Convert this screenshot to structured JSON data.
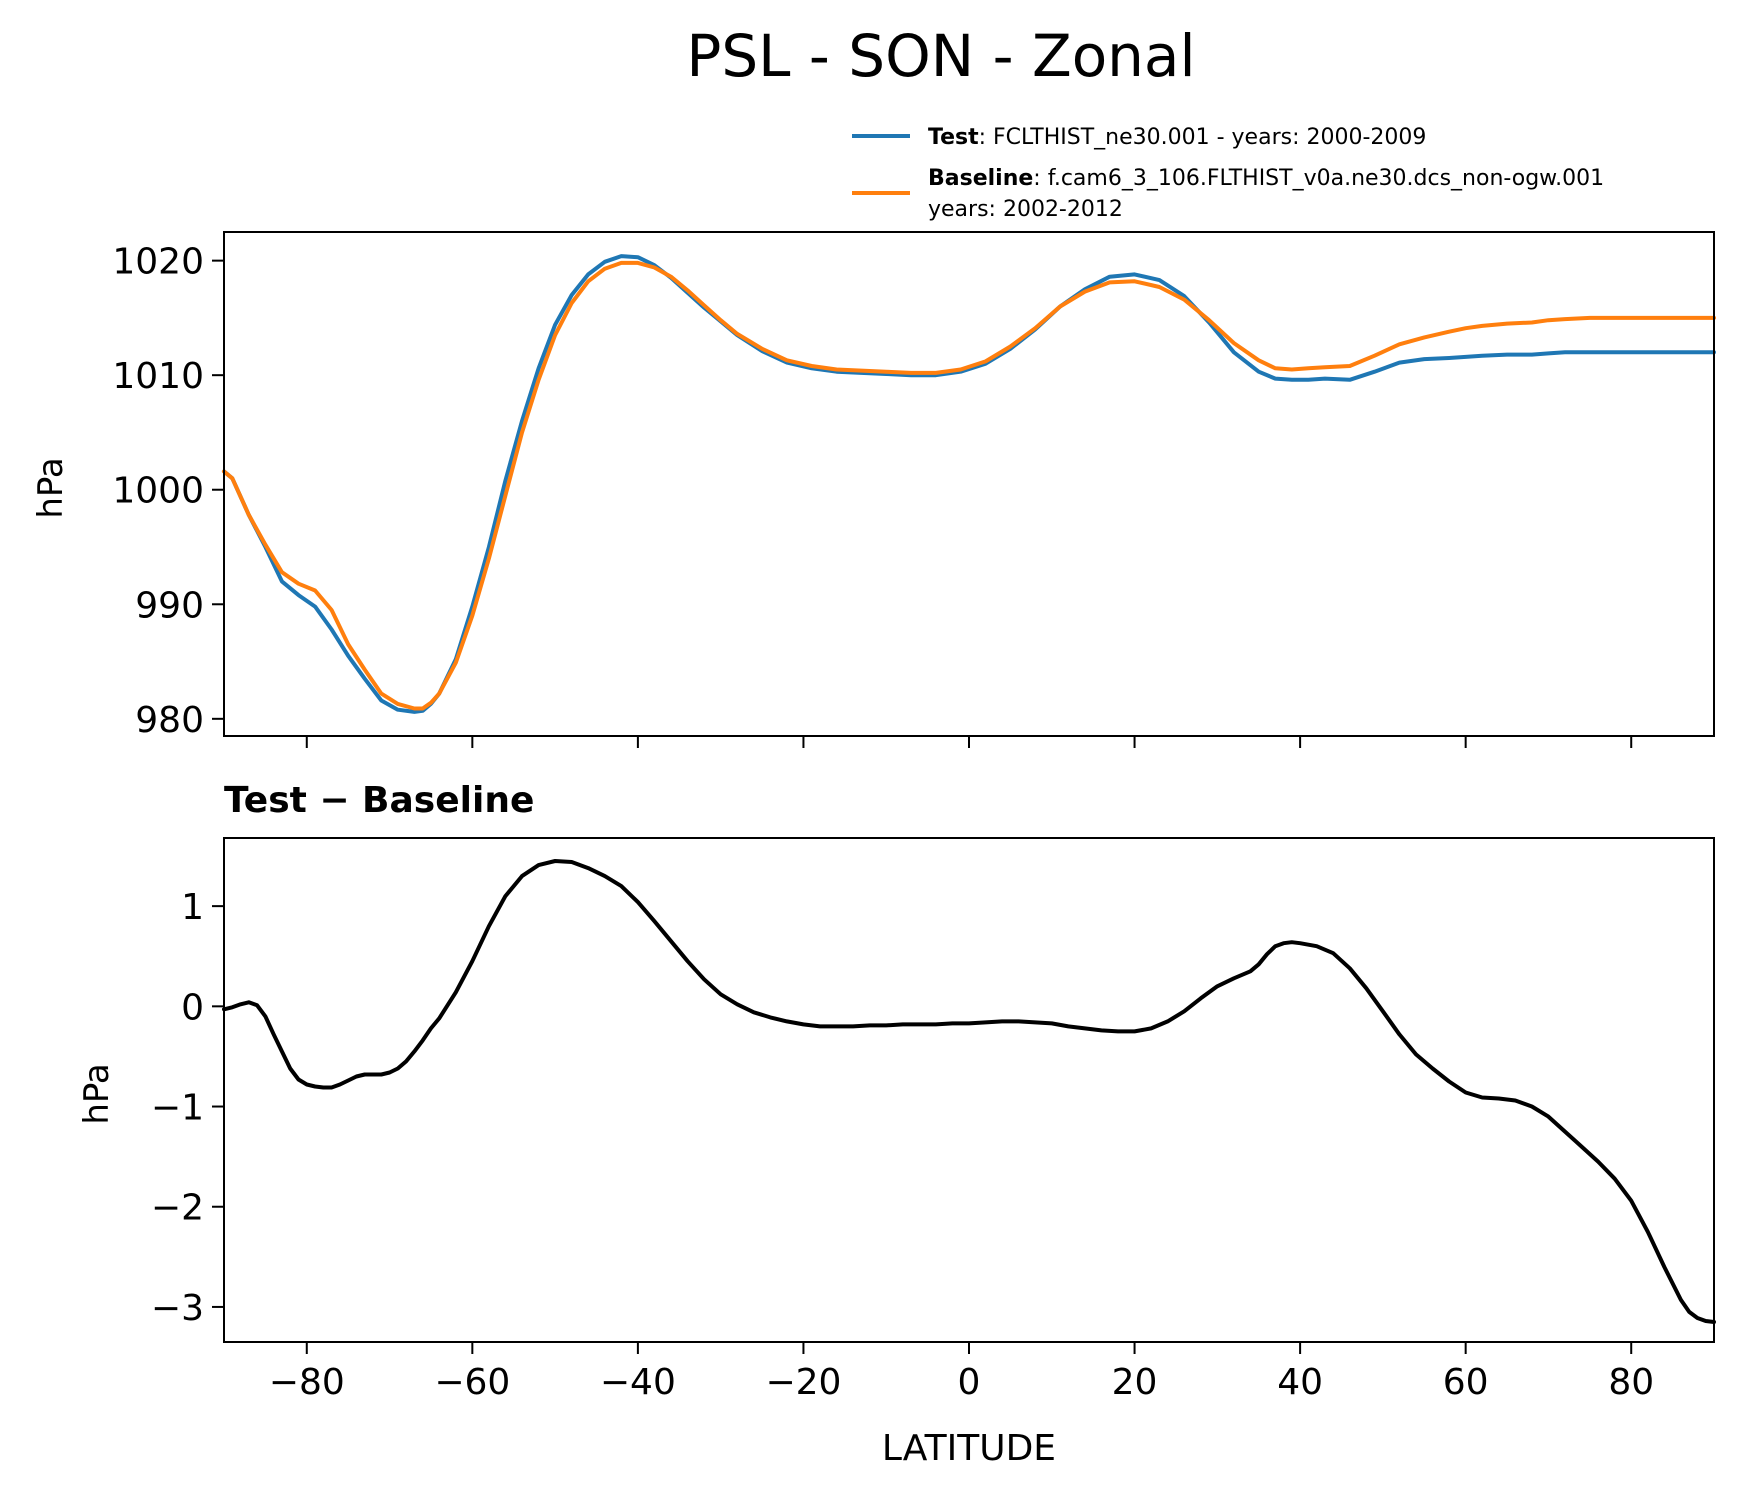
{
  "chart_data": [
    {
      "type": "line",
      "title": "PSL - SON - Zonal",
      "xlabel": "",
      "ylabel": "hPa",
      "xlim": [
        -90,
        90
      ],
      "ylim": [
        978.5,
        1022.5
      ],
      "yticks": [
        980,
        990,
        1000,
        1010,
        1020
      ],
      "ytick_labels": [
        "980",
        "990",
        "1000",
        "1010",
        "1020"
      ],
      "xticks": [
        -80,
        -60,
        -40,
        -20,
        0,
        20,
        40,
        60,
        80
      ],
      "legend": {
        "placement": "above-top-right",
        "entries": [
          {
            "series": "Test",
            "label_bold": "Test",
            "label_rest": ": FCLTHIST_ne30.001 - years: 2000-2009",
            "label_rest2": ""
          },
          {
            "series": "Baseline",
            "label_bold": "Baseline",
            "label_rest": ": f.cam6_3_106.FLTHIST_v0a.ne30.dcs_non-ogw.001",
            "label_rest2": "years: 2002-2012"
          }
        ]
      },
      "x": [
        -90,
        -89,
        -87,
        -85,
        -83,
        -81,
        -79,
        -77,
        -75,
        -73,
        -71,
        -69,
        -67,
        -66,
        -65,
        -64,
        -62,
        -60,
        -58,
        -56,
        -54,
        -52,
        -50,
        -48,
        -46,
        -44,
        -42,
        -40,
        -38,
        -36,
        -34,
        -32,
        -30,
        -28,
        -25,
        -22,
        -19,
        -16,
        -13,
        -10,
        -7,
        -4,
        -1,
        2,
        5,
        8,
        11,
        14,
        17,
        20,
        23,
        26,
        29,
        32,
        35,
        37,
        39,
        41,
        43,
        46,
        49,
        52,
        55,
        58,
        60,
        62,
        65,
        68,
        70,
        72,
        75,
        78,
        80,
        82,
        84,
        86,
        88,
        90
      ],
      "series": [
        {
          "name": "Test",
          "color": "#1f77b4",
          "values": [
            1001.6,
            1001.0,
            997.8,
            995.0,
            992.0,
            990.8,
            989.8,
            987.8,
            985.5,
            983.5,
            981.6,
            980.8,
            980.6,
            980.7,
            981.3,
            982.2,
            985.2,
            989.8,
            995.0,
            1000.8,
            1006.0,
            1010.6,
            1014.4,
            1017.0,
            1018.8,
            1019.9,
            1020.4,
            1020.3,
            1019.6,
            1018.5,
            1017.2,
            1015.9,
            1014.7,
            1013.5,
            1012.1,
            1011.1,
            1010.6,
            1010.3,
            1010.2,
            1010.1,
            1010.0,
            1010.0,
            1010.3,
            1011.0,
            1012.3,
            1014.0,
            1016.0,
            1017.5,
            1018.6,
            1018.8,
            1018.3,
            1016.9,
            1014.6,
            1012.0,
            1010.3,
            1009.7,
            1009.6,
            1009.6,
            1009.7,
            1009.6,
            1010.3,
            1011.1,
            1011.4,
            1011.5,
            1011.6,
            1011.7,
            1011.8,
            1011.8,
            1011.9,
            1012.0,
            1012.0,
            1012.0,
            1012.0,
            1012.0,
            1012.0,
            1012.0,
            1012.0,
            1012.0
          ]
        },
        {
          "name": "Baseline",
          "color": "#ff7f0e",
          "values": [
            1001.6,
            1001.0,
            997.8,
            995.2,
            992.8,
            991.8,
            991.2,
            989.5,
            986.5,
            984.3,
            982.2,
            981.3,
            980.9,
            980.9,
            981.4,
            982.2,
            984.9,
            989.0,
            994.0,
            999.5,
            1005.0,
            1009.6,
            1013.5,
            1016.3,
            1018.2,
            1019.3,
            1019.8,
            1019.8,
            1019.4,
            1018.6,
            1017.4,
            1016.1,
            1014.8,
            1013.6,
            1012.3,
            1011.3,
            1010.8,
            1010.5,
            1010.4,
            1010.3,
            1010.2,
            1010.2,
            1010.5,
            1011.2,
            1012.5,
            1014.1,
            1016.0,
            1017.3,
            1018.1,
            1018.2,
            1017.7,
            1016.6,
            1014.8,
            1012.8,
            1011.3,
            1010.6,
            1010.5,
            1010.6,
            1010.7,
            1010.8,
            1011.7,
            1012.7,
            1013.3,
            1013.8,
            1014.1,
            1014.3,
            1014.5,
            1014.6,
            1014.8,
            1014.9,
            1015.0,
            1015.0,
            1015.0,
            1015.0,
            1015.0,
            1015.0,
            1015.0,
            1015.0
          ]
        }
      ]
    },
    {
      "type": "line",
      "title": "Test − Baseline",
      "xlabel": "LATITUDE",
      "ylabel": "hPa",
      "xlim": [
        -90,
        90
      ],
      "ylim": [
        -3.35,
        1.68
      ],
      "yticks": [
        -3,
        -2,
        -1,
        0,
        1
      ],
      "ytick_labels": [
        "−3",
        "−2",
        "−1",
        "0",
        "1"
      ],
      "xticks": [
        -80,
        -60,
        -40,
        -20,
        0,
        20,
        40,
        60,
        80
      ],
      "xtick_labels": [
        "−80",
        "−60",
        "−40",
        "−20",
        "0",
        "20",
        "40",
        "60",
        "80"
      ],
      "x": [
        -90,
        -89,
        -88,
        -87,
        -86,
        -85,
        -84,
        -83,
        -82,
        -81,
        -80,
        -79,
        -78,
        -77,
        -76,
        -75,
        -74,
        -73,
        -72,
        -71,
        -70,
        -69,
        -68,
        -67,
        -66,
        -65,
        -64,
        -62,
        -60,
        -58,
        -56,
        -54,
        -52,
        -50,
        -48,
        -46,
        -44,
        -42,
        -40,
        -38,
        -36,
        -34,
        -32,
        -30,
        -28,
        -26,
        -24,
        -22,
        -20,
        -18,
        -16,
        -14,
        -12,
        -10,
        -8,
        -6,
        -4,
        -2,
        0,
        2,
        4,
        6,
        8,
        10,
        12,
        14,
        16,
        18,
        20,
        22,
        24,
        26,
        28,
        30,
        32,
        34,
        35,
        36,
        37,
        38,
        39,
        40,
        42,
        44,
        46,
        48,
        50,
        52,
        54,
        56,
        58,
        60,
        62,
        64,
        66,
        68,
        70,
        72,
        74,
        76,
        78,
        80,
        82,
        84,
        86,
        87,
        88,
        89,
        90
      ],
      "series": [
        {
          "name": "Test - Baseline",
          "color": "#000000",
          "values": [
            -0.03,
            -0.01,
            0.02,
            0.04,
            0.01,
            -0.1,
            -0.28,
            -0.45,
            -0.62,
            -0.73,
            -0.78,
            -0.8,
            -0.81,
            -0.81,
            -0.78,
            -0.74,
            -0.7,
            -0.68,
            -0.68,
            -0.68,
            -0.66,
            -0.62,
            -0.55,
            -0.45,
            -0.34,
            -0.22,
            -0.12,
            0.14,
            0.45,
            0.8,
            1.1,
            1.3,
            1.41,
            1.45,
            1.44,
            1.38,
            1.3,
            1.2,
            1.04,
            0.85,
            0.65,
            0.45,
            0.27,
            0.12,
            0.02,
            -0.06,
            -0.11,
            -0.15,
            -0.18,
            -0.2,
            -0.2,
            -0.2,
            -0.19,
            -0.19,
            -0.18,
            -0.18,
            -0.18,
            -0.17,
            -0.17,
            -0.16,
            -0.15,
            -0.15,
            -0.16,
            -0.17,
            -0.2,
            -0.22,
            -0.24,
            -0.25,
            -0.25,
            -0.22,
            -0.15,
            -0.05,
            0.08,
            0.2,
            0.28,
            0.35,
            0.42,
            0.52,
            0.6,
            0.63,
            0.64,
            0.63,
            0.6,
            0.53,
            0.38,
            0.18,
            -0.05,
            -0.28,
            -0.48,
            -0.62,
            -0.75,
            -0.86,
            -0.91,
            -0.92,
            -0.94,
            -1.0,
            -1.1,
            -1.25,
            -1.4,
            -1.55,
            -1.72,
            -1.94,
            -2.25,
            -2.6,
            -2.93,
            -3.05,
            -3.11,
            -3.14,
            -3.15
          ]
        }
      ]
    }
  ]
}
